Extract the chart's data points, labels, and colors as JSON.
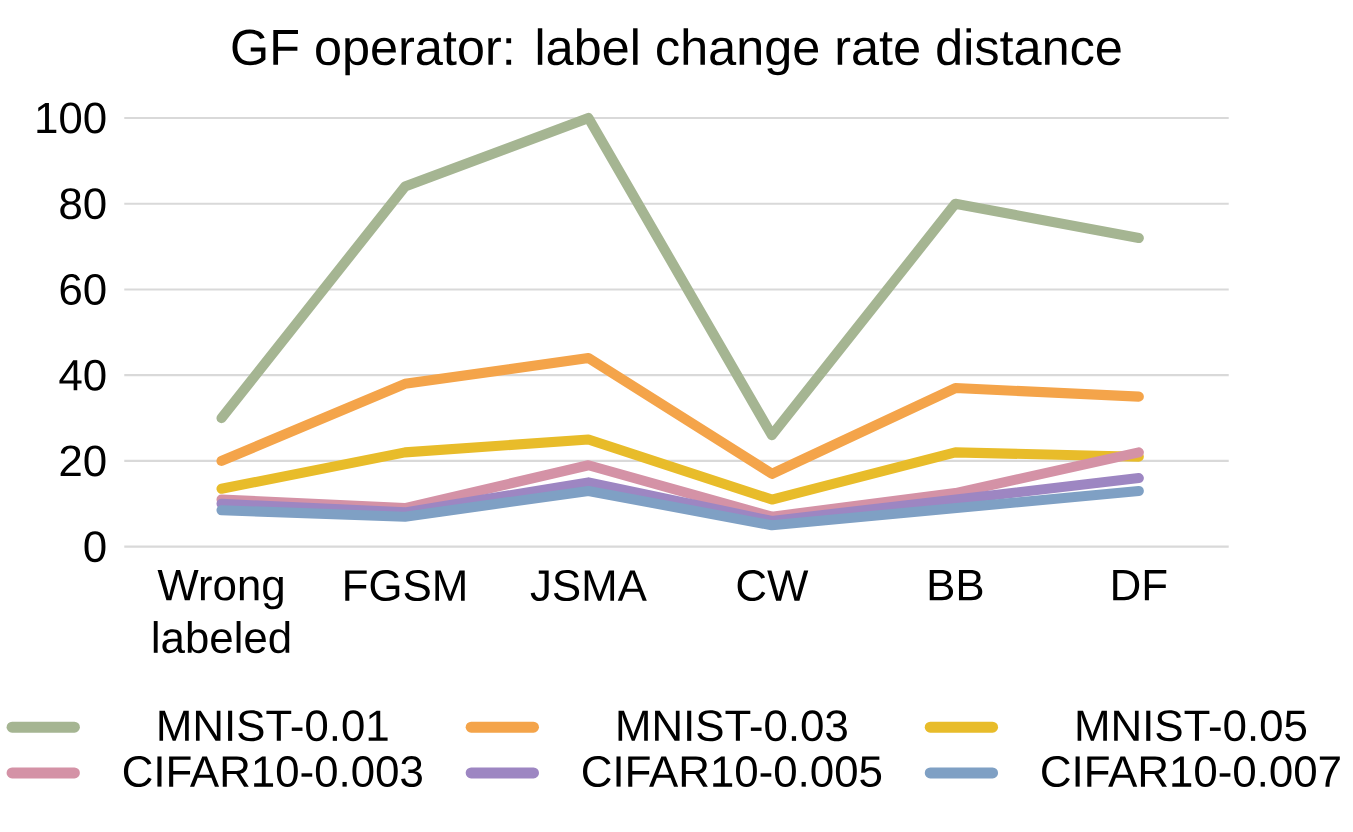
{
  "chart_data": {
    "type": "line",
    "title": "GF operator: label change rate distance",
    "categories": [
      "Wrong labeled",
      "FGSM",
      "JSMA",
      "CW",
      "BB",
      "DF"
    ],
    "series": [
      {
        "name": "MNIST-0.01",
        "color": "#a5b592",
        "values": [
          30,
          84,
          100,
          26,
          80,
          72
        ]
      },
      {
        "name": "MNIST-0.03",
        "color": "#f4a44a",
        "values": [
          20,
          38,
          44,
          17,
          37,
          35
        ]
      },
      {
        "name": "MNIST-0.05",
        "color": "#e8bc2a",
        "values": [
          13.5,
          22,
          25,
          11,
          22,
          21
        ]
      },
      {
        "name": "CIFAR10-0.003",
        "color": "#d492a6",
        "values": [
          11,
          9,
          19,
          7,
          12.5,
          22
        ]
      },
      {
        "name": "CIFAR10-0.005",
        "color": "#9d86c2",
        "values": [
          10,
          8,
          15,
          6,
          11,
          16
        ]
      },
      {
        "name": "CIFAR10-0.007",
        "color": "#7fa0c4",
        "values": [
          8.5,
          7,
          13,
          5,
          9,
          13
        ]
      }
    ],
    "ylim": [
      0,
      100
    ],
    "yticks": [
      0,
      20,
      40,
      60,
      80,
      100
    ],
    "grid": "y",
    "legend": "bottom",
    "marker": "none",
    "line_style": "solid"
  }
}
